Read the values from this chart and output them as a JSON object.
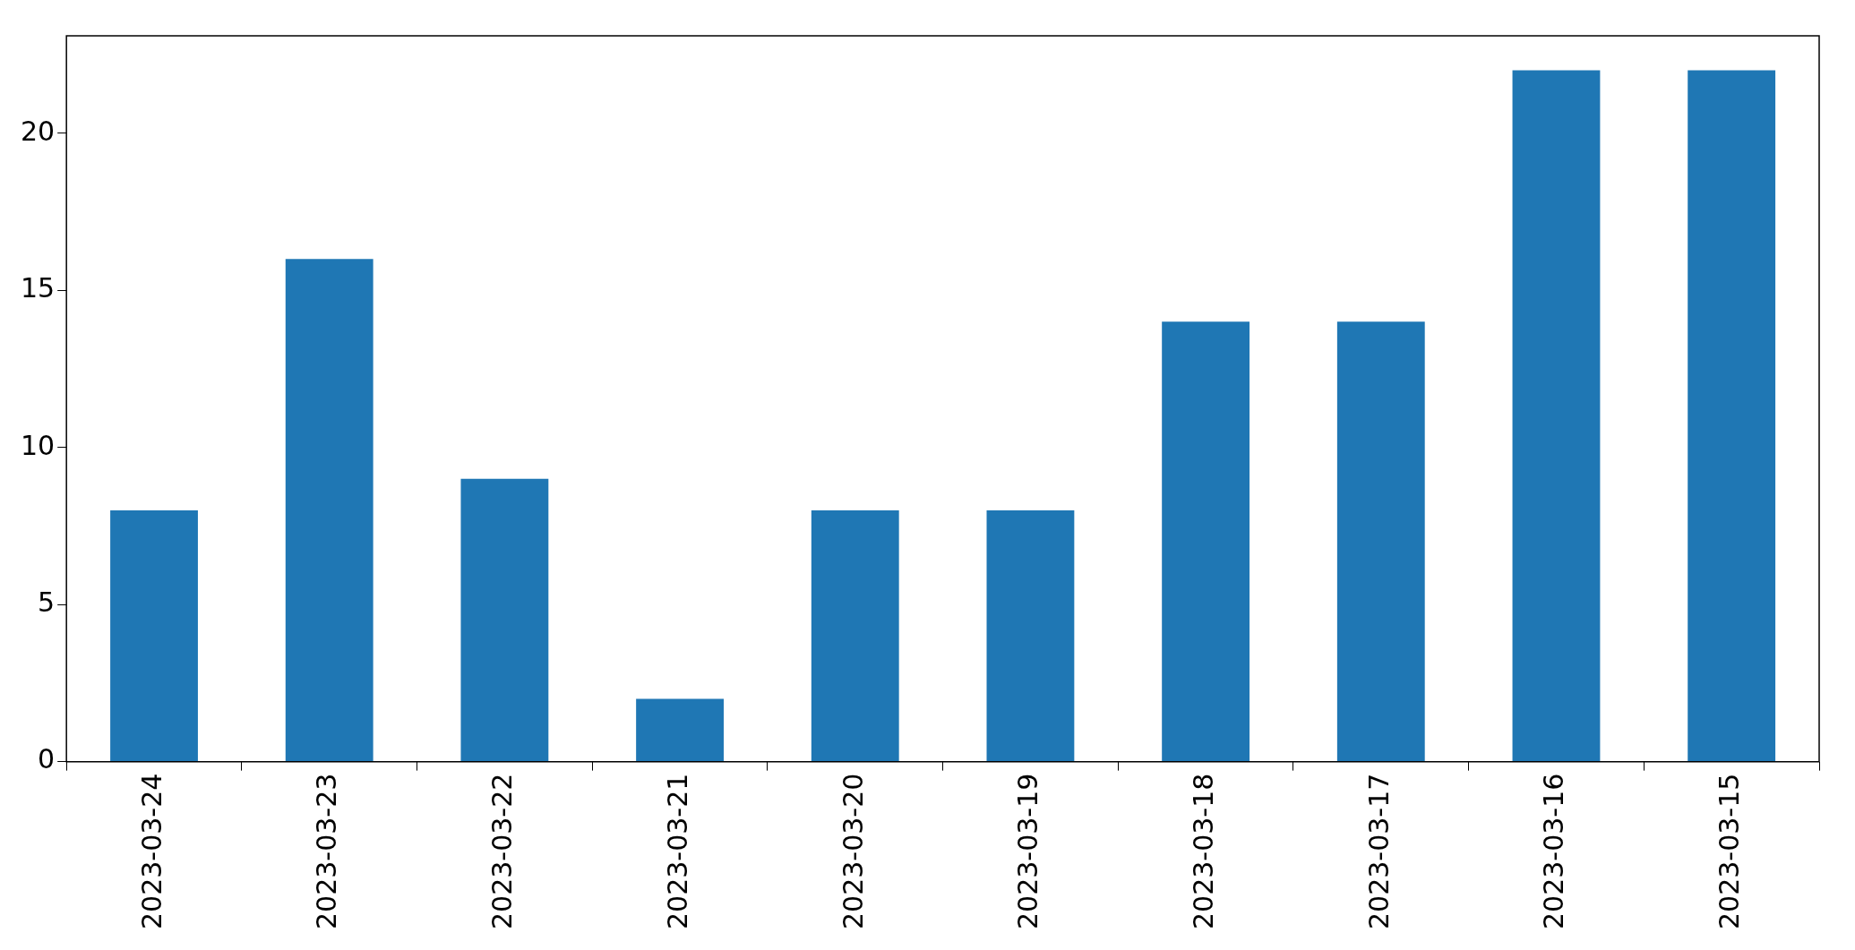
{
  "chart_data": {
    "type": "bar",
    "categories": [
      "2023-03-24",
      "2023-03-23",
      "2023-03-22",
      "2023-03-21",
      "2023-03-20",
      "2023-03-19",
      "2023-03-18",
      "2023-03-17",
      "2023-03-16",
      "2023-03-15"
    ],
    "values": [
      8,
      16,
      9,
      2,
      8,
      8,
      14,
      14,
      22,
      22
    ],
    "color": "#1f77b4",
    "ylim": [
      0,
      23.1
    ],
    "yticks": [
      0,
      5,
      10,
      15,
      20
    ],
    "grid": false,
    "legend": false
  }
}
